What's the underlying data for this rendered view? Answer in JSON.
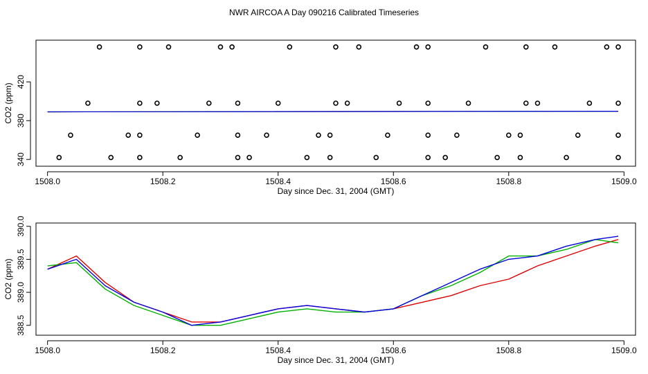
{
  "title": "NWR AIRCOA A  Day 090216  Calibrated Timeseries",
  "colors": {
    "red": "#e00000",
    "green": "#00b000",
    "blue": "#0000e0",
    "black": "#000000"
  },
  "chart_data": [
    {
      "type": "scatter",
      "xlabel": "Day since Dec. 31, 2004 (GMT)",
      "ylabel": "CO2 (ppm)",
      "xlim": [
        1507.98,
        1509.02
      ],
      "ylim": [
        333,
        463
      ],
      "x_ticks": [
        1508.0,
        1508.2,
        1508.4,
        1508.6,
        1508.8,
        1509.0
      ],
      "x_tick_labels": [
        "1508.0",
        "1508.2",
        "1508.4",
        "1508.6",
        "1508.8",
        "1509.0"
      ],
      "y_ticks": [
        340,
        380,
        420
      ],
      "y_tick_labels": [
        "340",
        "380",
        "420"
      ],
      "grid": false,
      "points": [
        [
          1508.09,
          456
        ],
        [
          1508.16,
          456
        ],
        [
          1508.21,
          456
        ],
        [
          1508.3,
          456
        ],
        [
          1508.32,
          456
        ],
        [
          1508.42,
          456
        ],
        [
          1508.5,
          456
        ],
        [
          1508.54,
          456
        ],
        [
          1508.64,
          456
        ],
        [
          1508.66,
          456
        ],
        [
          1508.76,
          456
        ],
        [
          1508.83,
          456
        ],
        [
          1508.88,
          456
        ],
        [
          1508.97,
          456
        ],
        [
          1508.99,
          456
        ],
        [
          1508.07,
          398
        ],
        [
          1508.16,
          398
        ],
        [
          1508.19,
          398
        ],
        [
          1508.28,
          398
        ],
        [
          1508.33,
          398
        ],
        [
          1508.4,
          398
        ],
        [
          1508.5,
          398
        ],
        [
          1508.52,
          398
        ],
        [
          1508.61,
          398
        ],
        [
          1508.66,
          398
        ],
        [
          1508.73,
          398
        ],
        [
          1508.83,
          398
        ],
        [
          1508.85,
          398
        ],
        [
          1508.94,
          398
        ],
        [
          1508.99,
          398
        ],
        [
          1508.04,
          365
        ],
        [
          1508.14,
          365
        ],
        [
          1508.16,
          365
        ],
        [
          1508.26,
          365
        ],
        [
          1508.33,
          365
        ],
        [
          1508.38,
          365
        ],
        [
          1508.47,
          365
        ],
        [
          1508.49,
          365
        ],
        [
          1508.59,
          365
        ],
        [
          1508.66,
          365
        ],
        [
          1508.71,
          365
        ],
        [
          1508.8,
          365
        ],
        [
          1508.82,
          365
        ],
        [
          1508.92,
          365
        ],
        [
          1508.99,
          365
        ],
        [
          1508.02,
          342
        ],
        [
          1508.11,
          342
        ],
        [
          1508.16,
          342
        ],
        [
          1508.23,
          342
        ],
        [
          1508.33,
          342
        ],
        [
          1508.35,
          342
        ],
        [
          1508.45,
          342
        ],
        [
          1508.49,
          342
        ],
        [
          1508.57,
          342
        ],
        [
          1508.66,
          342
        ],
        [
          1508.69,
          342
        ],
        [
          1508.78,
          342
        ],
        [
          1508.82,
          342
        ],
        [
          1508.9,
          342
        ],
        [
          1508.99,
          342
        ]
      ],
      "series": [
        {
          "color": "red",
          "x": [
            1508.0,
            1508.99
          ],
          "y": [
            389.1,
            389.7
          ]
        },
        {
          "color": "green",
          "x": [
            1508.0,
            1508.99
          ],
          "y": [
            389.1,
            389.7
          ]
        },
        {
          "color": "blue",
          "x": [
            1508.0,
            1508.99
          ],
          "y": [
            389.1,
            389.7
          ]
        }
      ]
    },
    {
      "type": "line",
      "xlabel": "Day since Dec. 31, 2004 (GMT)",
      "ylabel": "CO2 (ppm)",
      "xlim": [
        1507.98,
        1509.02
      ],
      "ylim": [
        388.35,
        390.05
      ],
      "x_ticks": [
        1508.0,
        1508.2,
        1508.4,
        1508.6,
        1508.8,
        1509.0
      ],
      "x_tick_labels": [
        "1508.0",
        "1508.2",
        "1508.4",
        "1508.6",
        "1508.8",
        "1509.0"
      ],
      "y_ticks": [
        388.5,
        389.0,
        389.5,
        390.0
      ],
      "y_tick_labels": [
        "388.5",
        "389.0",
        "389.5",
        "390.0"
      ],
      "grid": false,
      "x": [
        1508.0,
        1508.05,
        1508.1,
        1508.15,
        1508.2,
        1508.25,
        1508.3,
        1508.35,
        1508.4,
        1508.45,
        1508.5,
        1508.55,
        1508.6,
        1508.65,
        1508.7,
        1508.75,
        1508.8,
        1508.85,
        1508.9,
        1508.95,
        1508.99
      ],
      "series": [
        {
          "color": "red",
          "values": [
            389.35,
            389.55,
            389.15,
            388.85,
            388.7,
            388.55,
            388.55,
            388.65,
            388.75,
            388.8,
            388.75,
            388.7,
            388.75,
            388.85,
            388.95,
            389.1,
            389.2,
            389.4,
            389.55,
            389.7,
            389.8
          ]
        },
        {
          "color": "green",
          "values": [
            389.4,
            389.45,
            389.05,
            388.8,
            388.65,
            388.5,
            388.5,
            388.6,
            388.7,
            388.75,
            388.7,
            388.7,
            388.75,
            388.95,
            389.1,
            389.3,
            389.55,
            389.55,
            389.65,
            389.8,
            389.75
          ]
        },
        {
          "color": "blue",
          "values": [
            389.35,
            389.5,
            389.1,
            388.85,
            388.7,
            388.5,
            388.55,
            388.65,
            388.75,
            388.8,
            388.75,
            388.7,
            388.75,
            388.95,
            389.15,
            389.35,
            389.5,
            389.55,
            389.7,
            389.8,
            389.85
          ]
        }
      ]
    }
  ]
}
